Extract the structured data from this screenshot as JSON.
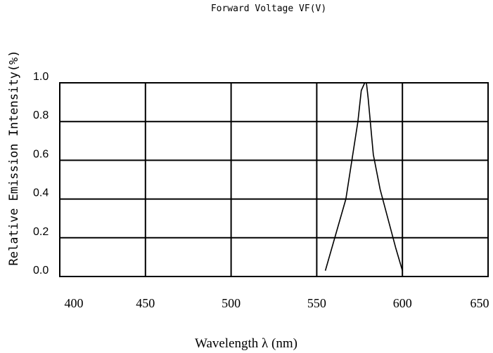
{
  "header_text": "Forward Voltage VF(V)",
  "chart_data": {
    "type": "line",
    "title": "",
    "xlabel": "Wavelength λ (nm)",
    "ylabel": "Relative Emission Intensity(%)",
    "xlim": [
      400,
      650
    ],
    "ylim": [
      0.0,
      1.0
    ],
    "x_ticks": [
      "400",
      "450",
      "500",
      "550",
      "600",
      "650"
    ],
    "y_ticks": [
      "0.0",
      "0.2",
      "0.4",
      "0.6",
      "0.8",
      "1.0"
    ],
    "grid": true,
    "series": [
      {
        "x": [
          555,
          567,
          574,
          576,
          578,
          579,
          580,
          583,
          587,
          596,
          600
        ],
        "y": [
          0.03,
          0.4,
          0.8,
          0.96,
          1.0,
          1.0,
          0.92,
          0.63,
          0.45,
          0.15,
          0.03
        ]
      }
    ]
  }
}
